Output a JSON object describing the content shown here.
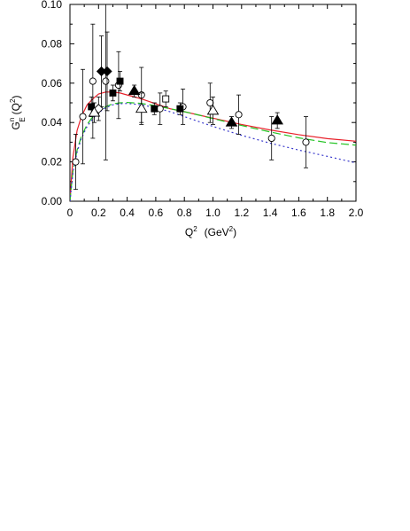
{
  "chart_data": {
    "type": "scatter",
    "xlabel_main": "Q",
    "xlabel_sup": "2",
    "xlabel_units": "(GeV",
    "xlabel_units_sup": "2",
    "xlabel_close": ")",
    "ylabel_main": "G",
    "ylabel_sup": "n",
    "ylabel_sub": "E",
    "ylabel_arg": "(Q",
    "ylabel_arg_sup": "2",
    "ylabel_close": ")",
    "xlim": [
      0,
      2.0
    ],
    "ylim": [
      0,
      0.1
    ],
    "xticks": [
      "0",
      "0.2",
      "0.4",
      "0.6",
      "0.8",
      "1.0",
      "1.2",
      "1.4",
      "1.6",
      "1.8",
      "2.0"
    ],
    "yticks": [
      "0.00",
      "0.02",
      "0.04",
      "0.06",
      "0.08",
      "0.10"
    ],
    "grid": false,
    "curves": [
      {
        "style": "solid",
        "color": "#e8202a",
        "x": [
          0,
          0.02,
          0.05,
          0.08,
          0.12,
          0.16,
          0.2,
          0.25,
          0.3,
          0.35,
          0.4,
          0.5,
          0.6,
          0.7,
          0.8,
          0.9,
          1.0,
          1.2,
          1.4,
          1.6,
          1.8,
          2.0
        ],
        "y": [
          0,
          0.022,
          0.036,
          0.043,
          0.049,
          0.052,
          0.0545,
          0.0555,
          0.0555,
          0.055,
          0.054,
          0.052,
          0.0495,
          0.047,
          0.0455,
          0.0438,
          0.0422,
          0.039,
          0.0362,
          0.0338,
          0.0318,
          0.0305
        ]
      },
      {
        "style": "dashed",
        "color": "#22c322",
        "x": [
          0,
          0.02,
          0.05,
          0.08,
          0.12,
          0.16,
          0.2,
          0.25,
          0.3,
          0.35,
          0.4,
          0.5,
          0.6,
          0.7,
          0.8,
          0.9,
          1.0,
          1.2,
          1.4,
          1.6,
          1.8,
          2.0
        ],
        "y": [
          0,
          0.015,
          0.026,
          0.033,
          0.039,
          0.043,
          0.046,
          0.048,
          0.0495,
          0.05,
          0.0502,
          0.0497,
          0.0485,
          0.047,
          0.0455,
          0.0438,
          0.042,
          0.0385,
          0.0352,
          0.0322,
          0.0298,
          0.0285
        ]
      },
      {
        "style": "dotted",
        "color": "#3a3acc",
        "x": [
          0,
          0.02,
          0.05,
          0.08,
          0.12,
          0.16,
          0.2,
          0.25,
          0.3,
          0.35,
          0.4,
          0.5,
          0.6,
          0.7,
          0.8,
          0.9,
          1.0,
          1.2,
          1.4,
          1.6,
          1.8,
          2.0
        ],
        "y": [
          0,
          0.014,
          0.025,
          0.032,
          0.038,
          0.042,
          0.045,
          0.0475,
          0.049,
          0.0495,
          0.0497,
          0.049,
          0.0475,
          0.0455,
          0.043,
          0.0405,
          0.038,
          0.0335,
          0.0295,
          0.026,
          0.0228,
          0.0195
        ]
      }
    ],
    "points": [
      {
        "marker": "circle-open",
        "x": 0.04,
        "y": 0.02,
        "err": 0.014
      },
      {
        "marker": "circle-open",
        "x": 0.09,
        "y": 0.043,
        "err": 0.024
      },
      {
        "marker": "circle-open",
        "x": 0.16,
        "y": 0.061,
        "err": 0.029
      },
      {
        "marker": "circle-open",
        "x": 0.25,
        "y": 0.061,
        "err": 0.04
      },
      {
        "marker": "circle-open",
        "x": 0.34,
        "y": 0.059,
        "err": 0.017
      },
      {
        "marker": "circle-open",
        "x": 0.5,
        "y": 0.054,
        "err": 0.014
      },
      {
        "marker": "circle-open",
        "x": 0.63,
        "y": 0.047,
        "err": 0.008
      },
      {
        "marker": "circle-open",
        "x": 0.79,
        "y": 0.048,
        "err": 0.009
      },
      {
        "marker": "circle-open",
        "x": 0.98,
        "y": 0.05,
        "err": 0.01
      },
      {
        "marker": "circle-open",
        "x": 1.18,
        "y": 0.044,
        "err": 0.01
      },
      {
        "marker": "circle-open",
        "x": 1.41,
        "y": 0.032,
        "err": 0.011
      },
      {
        "marker": "circle-open",
        "x": 1.65,
        "y": 0.03,
        "err": 0.013
      },
      {
        "marker": "diamond-filled",
        "x": 0.22,
        "y": 0.066,
        "err": 0.018
      },
      {
        "marker": "diamond-filled",
        "x": 0.26,
        "y": 0.066,
        "err": 0.02
      },
      {
        "marker": "diamond-open",
        "x": 0.2,
        "y": 0.047,
        "err": 0.006
      },
      {
        "marker": "square-filled",
        "x": 0.15,
        "y": 0.048,
        "err": 0.005
      },
      {
        "marker": "square-filled",
        "x": 0.3,
        "y": 0.055,
        "err": 0.004
      },
      {
        "marker": "square-filled",
        "x": 0.35,
        "y": 0.061,
        "err": 0.005
      },
      {
        "marker": "square-filled",
        "x": 0.59,
        "y": 0.047,
        "err": 0.003
      },
      {
        "marker": "square-filled",
        "x": 0.77,
        "y": 0.047,
        "err": 0.003
      },
      {
        "marker": "square-open",
        "x": 0.67,
        "y": 0.052,
        "err": 0.004
      },
      {
        "marker": "triangle-filled",
        "x": 0.45,
        "y": 0.056,
        "err": 0.003
      },
      {
        "marker": "triangle-filled",
        "x": 1.13,
        "y": 0.04,
        "err": 0.003
      },
      {
        "marker": "triangle-filled",
        "x": 1.45,
        "y": 0.041,
        "err": 0.004
      },
      {
        "marker": "triangle-open",
        "x": 0.5,
        "y": 0.047,
        "err": 0.008
      },
      {
        "marker": "triangle-open",
        "x": 1.0,
        "y": 0.046,
        "err": 0.007
      },
      {
        "marker": "triangle-open",
        "x": 0.17,
        "y": 0.045,
        "err": 0.005
      }
    ]
  }
}
